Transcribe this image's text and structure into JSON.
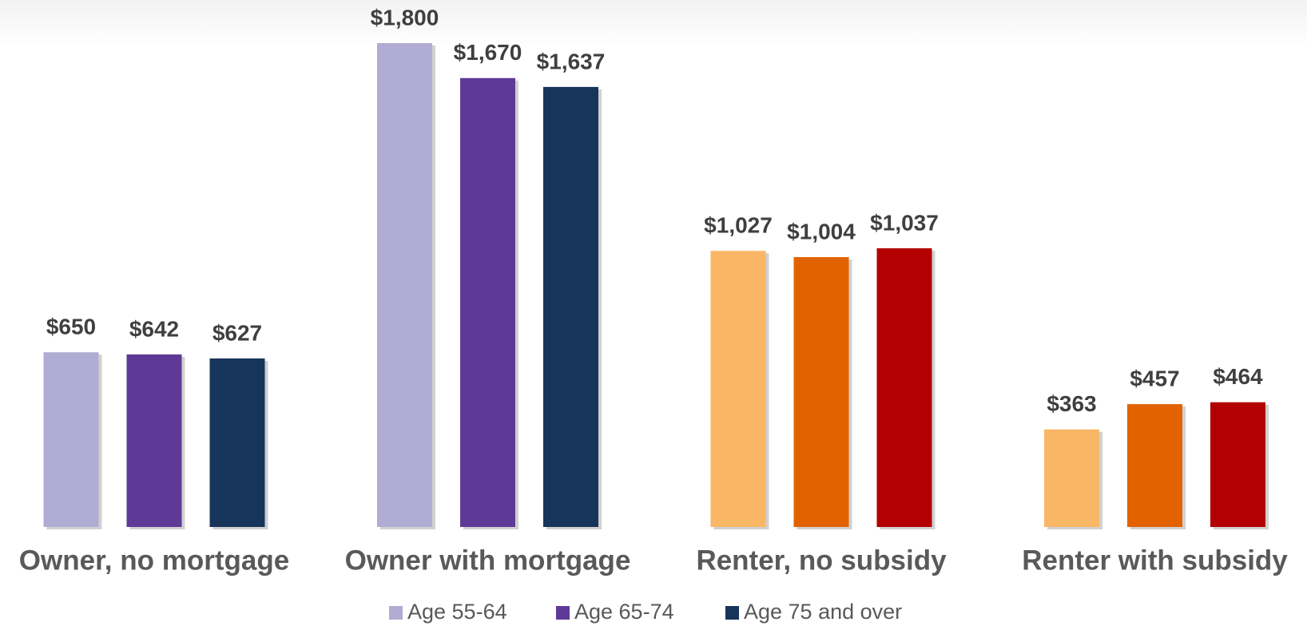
{
  "chart_data": {
    "type": "bar",
    "categories": [
      "Owner, no mortgage",
      "Owner with mortgage",
      "Renter, no subsidy",
      "Renter with subsidy"
    ],
    "series": [
      {
        "name": "Age 55-64",
        "color": "#b1acd3",
        "colors": [
          "#b1acd3",
          "#b1acd3",
          "#f9b766",
          "#f9b766"
        ],
        "values": [
          650,
          1800,
          1027,
          363
        ],
        "value_labels": [
          "$650",
          "$1,800",
          "$1,027",
          "$363"
        ]
      },
      {
        "name": "Age 65-74",
        "color": "#5e3a96",
        "colors": [
          "#5e3a96",
          "#5e3a96",
          "#e36200",
          "#e36200"
        ],
        "values": [
          642,
          1670,
          1004,
          457
        ],
        "value_labels": [
          "$642",
          "$1,670",
          "$1,004",
          "$457"
        ]
      },
      {
        "name": "Age 75 and over",
        "color": "#17355a",
        "colors": [
          "#17355a",
          "#17355a",
          "#b30000",
          "#b30000"
        ],
        "values": [
          627,
          1637,
          1037,
          464
        ],
        "value_labels": [
          "$627",
          "$1,637",
          "$1,037",
          "$464"
        ]
      }
    ],
    "legend": "bottom"
  }
}
